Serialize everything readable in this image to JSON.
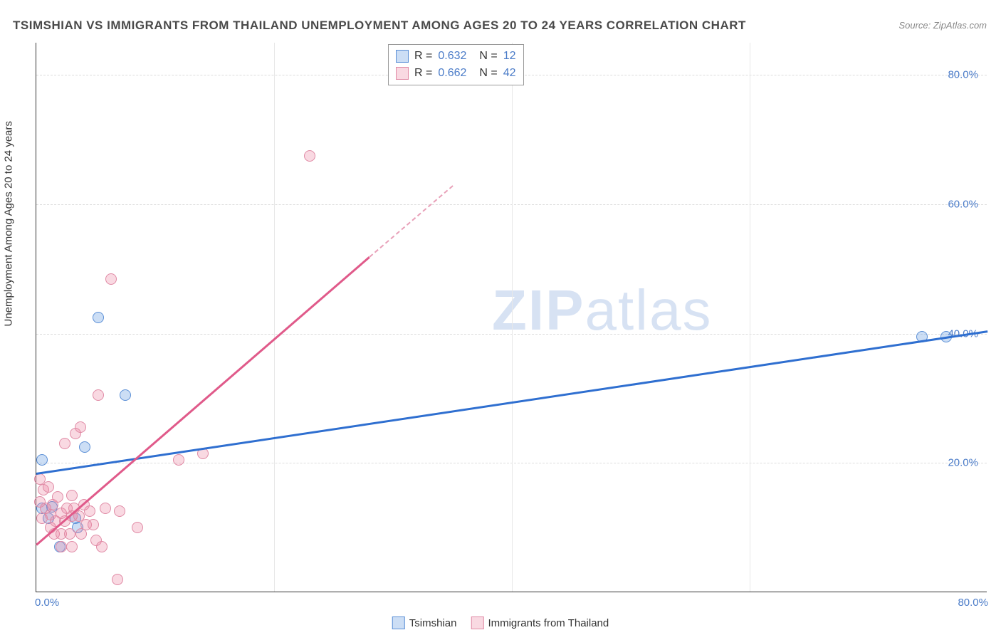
{
  "title": "TSIMSHIAN VS IMMIGRANTS FROM THAILAND UNEMPLOYMENT AMONG AGES 20 TO 24 YEARS CORRELATION CHART",
  "source": "Source: ZipAtlas.com",
  "y_axis_label": "Unemployment Among Ages 20 to 24 years",
  "watermark_bold": "ZIP",
  "watermark_light": "atlas",
  "chart": {
    "type": "scatter",
    "xlim": [
      0,
      80
    ],
    "ylim": [
      0,
      85
    ],
    "x_ticks": [
      {
        "pos": 0,
        "label": "0.0%"
      },
      {
        "pos": 80,
        "label": "80.0%"
      }
    ],
    "y_ticks": [
      {
        "pos": 20,
        "label": "20.0%"
      },
      {
        "pos": 40,
        "label": "40.0%"
      },
      {
        "pos": 60,
        "label": "60.0%"
      },
      {
        "pos": 80,
        "label": "80.0%"
      }
    ],
    "grid_color": "#dcdcdc",
    "vgrid_positions": [
      20,
      40,
      60
    ],
    "background_color": "#ffffff",
    "marker_radius": 8,
    "series": [
      {
        "name": "Tsimshian",
        "color_fill": "rgba(110,160,225,0.35)",
        "color_stroke": "#5b8fd6",
        "r": "0.632",
        "n": "12",
        "trend": {
          "x1": 0,
          "y1": 18.5,
          "x2": 80,
          "y2": 40.5,
          "color": "#2f6fd0",
          "width": 2.5
        },
        "points": [
          [
            0.5,
            20.5
          ],
          [
            0.5,
            13.0
          ],
          [
            1.3,
            13.2
          ],
          [
            1.0,
            11.5
          ],
          [
            2.0,
            7.0
          ],
          [
            3.3,
            11.5
          ],
          [
            4.1,
            22.5
          ],
          [
            3.5,
            10.0
          ],
          [
            5.2,
            42.5
          ],
          [
            7.5,
            30.5
          ],
          [
            74.5,
            39.5
          ],
          [
            76.5,
            39.5
          ]
        ]
      },
      {
        "name": "Immigrants from Thailand",
        "color_fill": "rgba(235,130,160,0.30)",
        "color_stroke": "#e08aa5",
        "r": "0.662",
        "n": "42",
        "trend_solid": {
          "x1": 0,
          "y1": 7.5,
          "x2": 28,
          "y2": 52.0,
          "color": "#e05a8a",
          "width": 2.5
        },
        "trend_dashed": {
          "x1": 28,
          "y1": 52.0,
          "x2": 35,
          "y2": 63.0,
          "color": "#e8a0b8",
          "width": 2
        },
        "points": [
          [
            0.3,
            17.5
          ],
          [
            0.3,
            14.0
          ],
          [
            0.6,
            15.8
          ],
          [
            0.8,
            13.0
          ],
          [
            0.5,
            11.5
          ],
          [
            1.0,
            16.3
          ],
          [
            1.2,
            12.0
          ],
          [
            1.2,
            10.0
          ],
          [
            1.4,
            13.5
          ],
          [
            1.6,
            11.0
          ],
          [
            1.5,
            9.0
          ],
          [
            1.8,
            14.7
          ],
          [
            2.1,
            12.2
          ],
          [
            2.1,
            9.0
          ],
          [
            2.1,
            7.0
          ],
          [
            2.4,
            11.0
          ],
          [
            2.4,
            23.0
          ],
          [
            2.6,
            13.0
          ],
          [
            2.8,
            9.0
          ],
          [
            3.0,
            11.8
          ],
          [
            3.0,
            7.0
          ],
          [
            3.0,
            15.0
          ],
          [
            3.2,
            13.0
          ],
          [
            3.3,
            24.5
          ],
          [
            3.6,
            11.8
          ],
          [
            3.7,
            25.5
          ],
          [
            3.8,
            9.0
          ],
          [
            4.0,
            13.5
          ],
          [
            4.2,
            10.5
          ],
          [
            4.5,
            12.5
          ],
          [
            4.8,
            10.5
          ],
          [
            5.0,
            8.0
          ],
          [
            5.2,
            30.5
          ],
          [
            5.5,
            7.0
          ],
          [
            5.8,
            13.0
          ],
          [
            6.3,
            48.5
          ],
          [
            6.8,
            2.0
          ],
          [
            7.0,
            12.5
          ],
          [
            8.5,
            10.0
          ],
          [
            12.0,
            20.5
          ],
          [
            14.0,
            21.5
          ],
          [
            23.0,
            67.5
          ]
        ]
      }
    ]
  },
  "r_legend_label_R": "R =",
  "r_legend_label_N": "N =",
  "bottom_legend": [
    {
      "swatch_fill": "rgba(110,160,225,0.35)",
      "swatch_stroke": "#5b8fd6",
      "label": "Tsimshian"
    },
    {
      "swatch_fill": "rgba(235,130,160,0.30)",
      "swatch_stroke": "#e08aa5",
      "label": "Immigrants from Thailand"
    }
  ]
}
